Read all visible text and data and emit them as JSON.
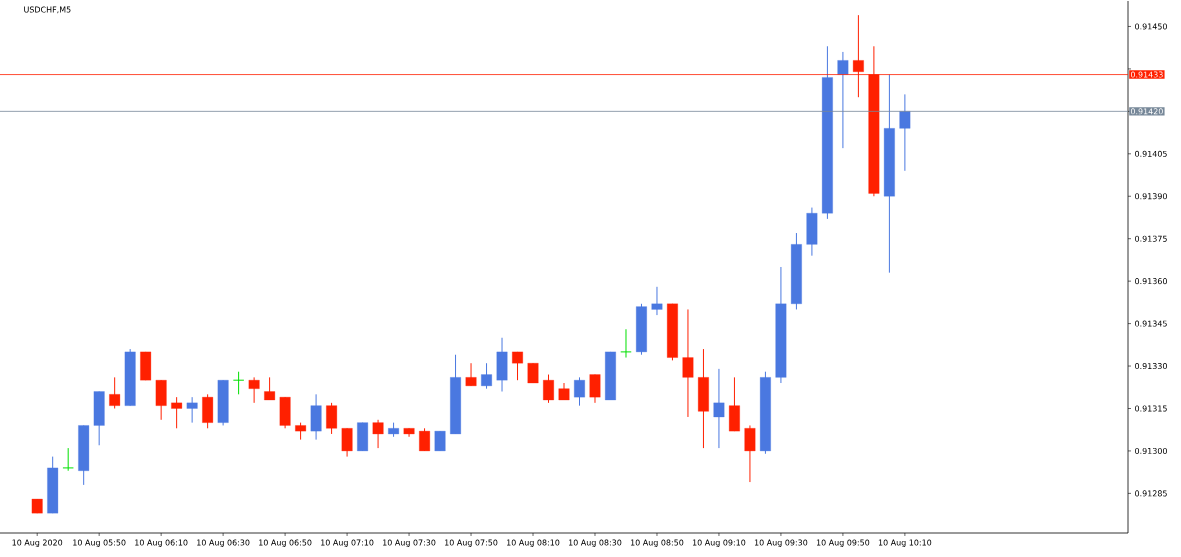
{
  "chart_data": {
    "type": "candlestick",
    "title": "USDCHF,M5",
    "x": [
      "2020-08-10T05:30",
      "2020-08-10T05:35",
      "2020-08-10T05:40",
      "2020-08-10T05:45",
      "2020-08-10T05:50",
      "2020-08-10T05:55",
      "2020-08-10T06:00",
      "2020-08-10T06:05",
      "2020-08-10T06:10",
      "2020-08-10T06:15",
      "2020-08-10T06:20",
      "2020-08-10T06:25",
      "2020-08-10T06:30",
      "2020-08-10T06:35",
      "2020-08-10T06:40",
      "2020-08-10T06:45",
      "2020-08-10T06:50",
      "2020-08-10T06:55",
      "2020-08-10T07:00",
      "2020-08-10T07:05",
      "2020-08-10T07:10",
      "2020-08-10T07:15",
      "2020-08-10T07:20",
      "2020-08-10T07:25",
      "2020-08-10T07:30",
      "2020-08-10T07:35",
      "2020-08-10T07:40",
      "2020-08-10T07:45",
      "2020-08-10T07:50",
      "2020-08-10T07:55",
      "2020-08-10T08:00",
      "2020-08-10T08:05",
      "2020-08-10T08:10",
      "2020-08-10T08:15",
      "2020-08-10T08:20",
      "2020-08-10T08:25",
      "2020-08-10T08:30",
      "2020-08-10T08:35",
      "2020-08-10T08:40",
      "2020-08-10T08:45",
      "2020-08-10T08:50",
      "2020-08-10T08:55",
      "2020-08-10T09:00",
      "2020-08-10T09:05",
      "2020-08-10T09:10",
      "2020-08-10T09:15",
      "2020-08-10T09:20",
      "2020-08-10T09:25",
      "2020-08-10T09:30",
      "2020-08-10T09:35",
      "2020-08-10T09:40",
      "2020-08-10T09:45",
      "2020-08-10T09:50",
      "2020-08-10T09:55",
      "2020-08-10T10:00",
      "2020-08-10T10:05",
      "2020-08-10T10:10"
    ],
    "xlim": [
      "2020-08-10T05:18",
      "2020-08-10T11:22"
    ],
    "xticks": [
      {
        "value": "2020-08-10T05:30",
        "label": "10 Aug 2020"
      },
      {
        "value": "2020-08-10T05:50",
        "label": "10 Aug 05:50"
      },
      {
        "value": "2020-08-10T06:10",
        "label": "10 Aug 06:10"
      },
      {
        "value": "2020-08-10T06:30",
        "label": "10 Aug 06:30"
      },
      {
        "value": "2020-08-10T06:50",
        "label": "10 Aug 06:50"
      },
      {
        "value": "2020-08-10T07:10",
        "label": "10 Aug 07:10"
      },
      {
        "value": "2020-08-10T07:30",
        "label": "10 Aug 07:30"
      },
      {
        "value": "2020-08-10T07:50",
        "label": "10 Aug 07:50"
      },
      {
        "value": "2020-08-10T08:10",
        "label": "10 Aug 08:10"
      },
      {
        "value": "2020-08-10T08:30",
        "label": "10 Aug 08:30"
      },
      {
        "value": "2020-08-10T08:50",
        "label": "10 Aug 08:50"
      },
      {
        "value": "2020-08-10T09:10",
        "label": "10 Aug 09:10"
      },
      {
        "value": "2020-08-10T09:30",
        "label": "10 Aug 09:30"
      },
      {
        "value": "2020-08-10T09:50",
        "label": "10 Aug 09:50"
      },
      {
        "value": "2020-08-10T10:10",
        "label": "10 Aug 10:10"
      }
    ],
    "ohlc": [
      [
        0.91283,
        0.91283,
        0.91278,
        0.91278
      ],
      [
        0.91278,
        0.91298,
        0.91278,
        0.91294
      ],
      [
        0.91294,
        0.91301,
        0.91293,
        0.91294
      ],
      [
        0.91293,
        0.91309,
        0.91288,
        0.91309
      ],
      [
        0.91309,
        0.91321,
        0.91302,
        0.91321
      ],
      [
        0.9132,
        0.91326,
        0.91315,
        0.91316
      ],
      [
        0.91316,
        0.91336,
        0.91316,
        0.91335
      ],
      [
        0.91335,
        0.91335,
        0.91325,
        0.91325
      ],
      [
        0.91325,
        0.91325,
        0.91311,
        0.91316
      ],
      [
        0.91317,
        0.91319,
        0.91308,
        0.91315
      ],
      [
        0.91315,
        0.91319,
        0.9131,
        0.91317
      ],
      [
        0.91319,
        0.9132,
        0.91308,
        0.9131
      ],
      [
        0.9131,
        0.91325,
        0.91309,
        0.91325
      ],
      [
        0.91325,
        0.91328,
        0.9132,
        0.91325
      ],
      [
        0.91325,
        0.91326,
        0.91317,
        0.91322
      ],
      [
        0.91321,
        0.91326,
        0.91318,
        0.91318
      ],
      [
        0.91319,
        0.91319,
        0.91308,
        0.91309
      ],
      [
        0.91309,
        0.9131,
        0.91304,
        0.91307
      ],
      [
        0.91307,
        0.9132,
        0.91304,
        0.91316
      ],
      [
        0.91316,
        0.91317,
        0.91306,
        0.91308
      ],
      [
        0.91308,
        0.91308,
        0.91298,
        0.913
      ],
      [
        0.913,
        0.9131,
        0.913,
        0.9131
      ],
      [
        0.9131,
        0.91311,
        0.91301,
        0.91306
      ],
      [
        0.91306,
        0.9131,
        0.91305,
        0.91308
      ],
      [
        0.91308,
        0.91308,
        0.91305,
        0.91306
      ],
      [
        0.91307,
        0.91308,
        0.913,
        0.913
      ],
      [
        0.913,
        0.91307,
        0.913,
        0.91307
      ],
      [
        0.91306,
        0.91334,
        0.91306,
        0.91326
      ],
      [
        0.91326,
        0.91331,
        0.91323,
        0.91323
      ],
      [
        0.91323,
        0.91331,
        0.91322,
        0.91327
      ],
      [
        0.91325,
        0.9134,
        0.91321,
        0.91335
      ],
      [
        0.91335,
        0.91335,
        0.91325,
        0.91331
      ],
      [
        0.91331,
        0.91331,
        0.91324,
        0.91324
      ],
      [
        0.91325,
        0.91327,
        0.91317,
        0.91318
      ],
      [
        0.91322,
        0.91324,
        0.91318,
        0.91318
      ],
      [
        0.91319,
        0.91326,
        0.91316,
        0.91325
      ],
      [
        0.91327,
        0.91327,
        0.91317,
        0.91319
      ],
      [
        0.91318,
        0.91335,
        0.91318,
        0.91335
      ],
      [
        0.91335,
        0.91343,
        0.91333,
        0.91335
      ],
      [
        0.91335,
        0.91352,
        0.91334,
        0.91351
      ],
      [
        0.9135,
        0.91358,
        0.91348,
        0.91352
      ],
      [
        0.91352,
        0.91352,
        0.91332,
        0.91333
      ],
      [
        0.91333,
        0.9135,
        0.91312,
        0.91326
      ],
      [
        0.91326,
        0.91336,
        0.91301,
        0.91314
      ],
      [
        0.91312,
        0.91329,
        0.91301,
        0.91317
      ],
      [
        0.91316,
        0.91326,
        0.91307,
        0.91307
      ],
      [
        0.91308,
        0.91309,
        0.91289,
        0.913
      ],
      [
        0.913,
        0.91328,
        0.91299,
        0.91326
      ],
      [
        0.91326,
        0.91365,
        0.91324,
        0.91352
      ],
      [
        0.91352,
        0.91377,
        0.9135,
        0.91373
      ],
      [
        0.91373,
        0.91386,
        0.91369,
        0.91384
      ],
      [
        0.91384,
        0.91443,
        0.91382,
        0.91432
      ],
      [
        0.91433,
        0.91441,
        0.91407,
        0.91438
      ],
      [
        0.91438,
        0.91454,
        0.91425,
        0.91434
      ],
      [
        0.91433,
        0.91443,
        0.9139,
        0.91391
      ],
      [
        0.9139,
        0.91433,
        0.91363,
        0.91414
      ],
      [
        0.91414,
        0.91426,
        0.91399,
        0.9142
      ]
    ],
    "colors": [
      "#ff2000",
      "#4a78e0",
      "#00e000",
      "#4a78e0",
      "#4a78e0",
      "#ff2000",
      "#4a78e0",
      "#ff2000",
      "#ff2000",
      "#ff2000",
      "#4a78e0",
      "#ff2000",
      "#4a78e0",
      "#00e000",
      "#ff2000",
      "#ff2000",
      "#ff2000",
      "#ff2000",
      "#4a78e0",
      "#ff2000",
      "#ff2000",
      "#4a78e0",
      "#ff2000",
      "#4a78e0",
      "#ff2000",
      "#ff2000",
      "#4a78e0",
      "#4a78e0",
      "#ff2000",
      "#4a78e0",
      "#4a78e0",
      "#ff2000",
      "#ff2000",
      "#ff2000",
      "#ff2000",
      "#4a78e0",
      "#ff2000",
      "#4a78e0",
      "#00e000",
      "#4a78e0",
      "#4a78e0",
      "#ff2000",
      "#ff2000",
      "#ff2000",
      "#4a78e0",
      "#ff2000",
      "#ff2000",
      "#4a78e0",
      "#4a78e0",
      "#4a78e0",
      "#4a78e0",
      "#4a78e0",
      "#4a78e0",
      "#ff2000",
      "#ff2000",
      "#4a78e0",
      "#4a78e0"
    ],
    "ylim": [
      0.91271,
      0.91459
    ],
    "yticks": [
      {
        "value": 0.91285,
        "label": "0.91285"
      },
      {
        "value": 0.913,
        "label": "0.91300"
      },
      {
        "value": 0.91315,
        "label": "0.91315"
      },
      {
        "value": 0.9133,
        "label": "0.91330"
      },
      {
        "value": 0.91345,
        "label": "0.91345"
      },
      {
        "value": 0.9136,
        "label": "0.91360"
      },
      {
        "value": 0.91375,
        "label": "0.91375"
      },
      {
        "value": 0.9139,
        "label": "0.91390"
      },
      {
        "value": 0.91405,
        "label": "0.91405"
      },
      {
        "value": 0.9142,
        "label": null
      },
      {
        "value": 0.91435,
        "label": null
      },
      {
        "value": 0.9145,
        "label": "0.91450"
      }
    ],
    "ref_lines": [
      {
        "axis": "y",
        "value": 0.91433,
        "label": "0.91433",
        "color": "#ff2000"
      },
      {
        "axis": "y",
        "value": 0.9142,
        "label": "0.91420",
        "color": "#778899"
      }
    ],
    "grid": false
  }
}
